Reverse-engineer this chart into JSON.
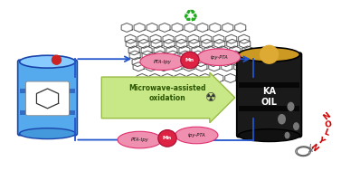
{
  "bg_color": "#ffffff",
  "blue_barrel_body": "#55aaee",
  "blue_barrel_top": "#88ccff",
  "blue_barrel_rim": "#2266cc",
  "black_barrel_body": "#222222",
  "black_barrel_top": "#cc9922",
  "arrow_blue": "#2255cc",
  "arrow_green_fill": "#c8e888",
  "arrow_green_edge": "#99bb44",
  "mw_text": "Microwave-assisted\noxidation",
  "mw_text_color": "#2a5500",
  "label_PTA_tpy": "PTA-tpy",
  "label_Mn": "Mn",
  "label_tpy_PTA": "tpy-PTA",
  "ellipse_fill": "#f090b0",
  "ellipse_edge": "#e03070",
  "mn_fill": "#dd2244",
  "mn_edge": "#aa1133",
  "graphene_color": "#444444",
  "recycle_color": "#22aa22",
  "drop_color": "#777777",
  "nylon_color": "#cc0000",
  "nylon_wire_color": "#666666",
  "radiation_color": "#333333"
}
